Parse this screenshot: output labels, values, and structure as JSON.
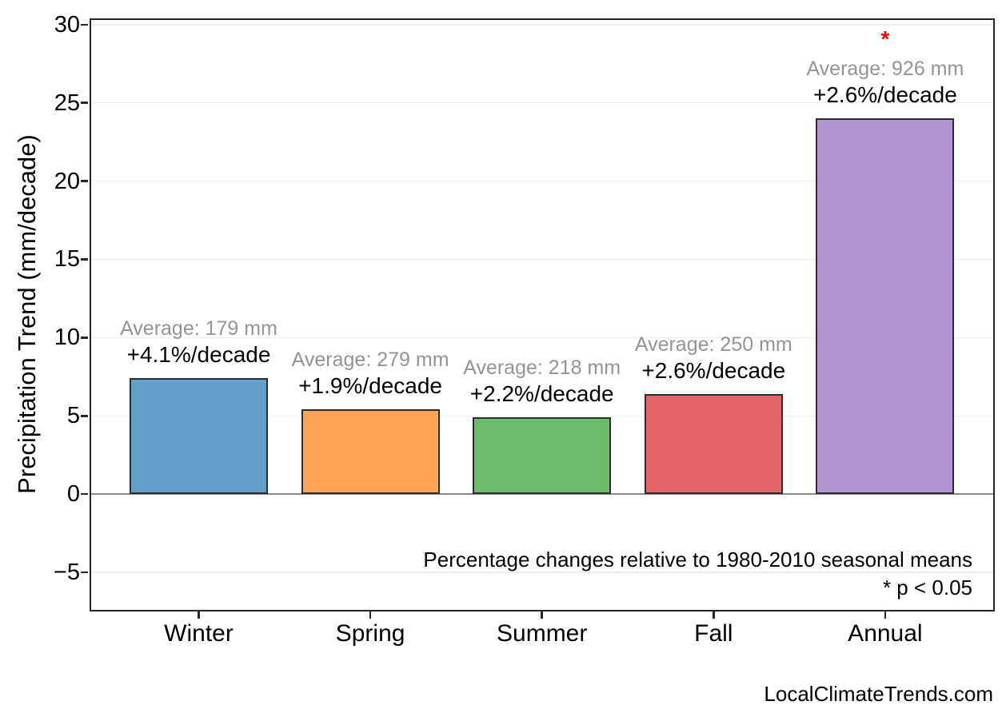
{
  "chart_data": {
    "type": "bar",
    "title": "",
    "categories": [
      "Winter",
      "Spring",
      "Summer",
      "Fall",
      "Annual"
    ],
    "values": [
      7.4,
      5.4,
      4.9,
      6.4,
      24.0
    ],
    "unit": "mm/decade",
    "ylabel": "Precipitation Trend (mm/decade)",
    "xlabel": "",
    "ylim": [
      -7.5,
      30.4
    ],
    "yticks": [
      30,
      25,
      20,
      15,
      10,
      5,
      0,
      -5
    ],
    "ytick_labels": [
      "30",
      "25",
      "20",
      "15",
      "10",
      "5",
      "0",
      "−5"
    ],
    "grid": "horizontal light-gray lines, darker gray zero line",
    "legend": "none",
    "bar_colors": [
      "#62A0CA",
      "#FFA455",
      "#6BBD6B",
      "#E26568",
      "#B294D1"
    ],
    "bar_edge_color": "#2d2d2d",
    "annotations": [
      {
        "average": "Average: 179 mm",
        "trend": "+4.1%/decade",
        "significant": false
      },
      {
        "average": "Average: 279 mm",
        "trend": "+1.9%/decade",
        "significant": false
      },
      {
        "average": "Average: 218 mm",
        "trend": "+2.2%/decade",
        "significant": false
      },
      {
        "average": "Average: 250 mm",
        "trend": "+2.6%/decade",
        "significant": false
      },
      {
        "average": "Average: 926 mm",
        "trend": "+2.6%/decade",
        "significant": true
      }
    ],
    "significance_marker": "*",
    "significance_color": "#EE0000",
    "avg_label_color": "#949494",
    "note_line1": "Percentage changes relative to 1980-2010 seasonal means",
    "note_line2": "* p < 0.05",
    "watermark": "LocalClimateTrends.com"
  }
}
